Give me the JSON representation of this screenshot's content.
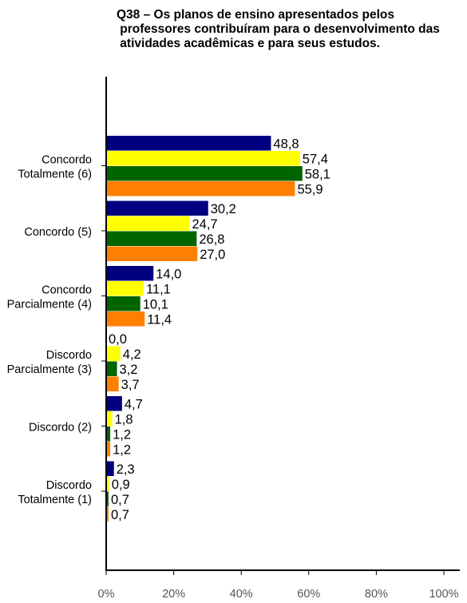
{
  "chart_data": {
    "type": "bar",
    "orientation": "horizontal",
    "title_lines": [
      "Q38 – Os planos de ensino apresentados pelos",
      " professores contribuíram para o desenvolvimento das",
      " atividades acadêmicas e para seus estudos."
    ],
    "categories": [
      [
        "Concordo",
        "Totalmente (6)"
      ],
      [
        "Concordo (5)"
      ],
      [
        "Concordo",
        "Parcialmente (4)"
      ],
      [
        "Discordo",
        "Parcialmente (3)"
      ],
      [
        "Discordo (2)"
      ],
      [
        "Discordo",
        "Totalmente (1)"
      ]
    ],
    "series": [
      {
        "color": "#000080",
        "values": [
          48.8,
          30.2,
          14.0,
          0.0,
          4.7,
          2.3
        ],
        "labels": [
          "48,8",
          "30,2",
          "14,0",
          "0,0",
          "4,7",
          "2,3"
        ]
      },
      {
        "color": "#FFFF00",
        "values": [
          57.4,
          24.7,
          11.1,
          4.2,
          1.8,
          0.9
        ],
        "labels": [
          "57,4",
          "24,7",
          "11,1",
          "4,2",
          "1,8",
          "0,9"
        ]
      },
      {
        "color": "#006400",
        "values": [
          58.1,
          26.8,
          10.1,
          3.2,
          1.2,
          0.7
        ],
        "labels": [
          "58,1",
          "26,8",
          "10,1",
          "3,2",
          "1,2",
          "0,7"
        ]
      },
      {
        "color": "#FF8000",
        "values": [
          55.9,
          27.0,
          11.4,
          3.7,
          1.2,
          0.7
        ],
        "labels": [
          "55,9",
          "27,0",
          "11,4",
          "3,7",
          "1,2",
          "0,7"
        ]
      }
    ],
    "xlim": [
      0,
      100
    ],
    "xticks": [
      0,
      20,
      40,
      60,
      80,
      100
    ],
    "xtick_labels": [
      "0%",
      "20%",
      "40%",
      "60%",
      "80%",
      "100%"
    ],
    "grid": false,
    "legend": "none"
  }
}
